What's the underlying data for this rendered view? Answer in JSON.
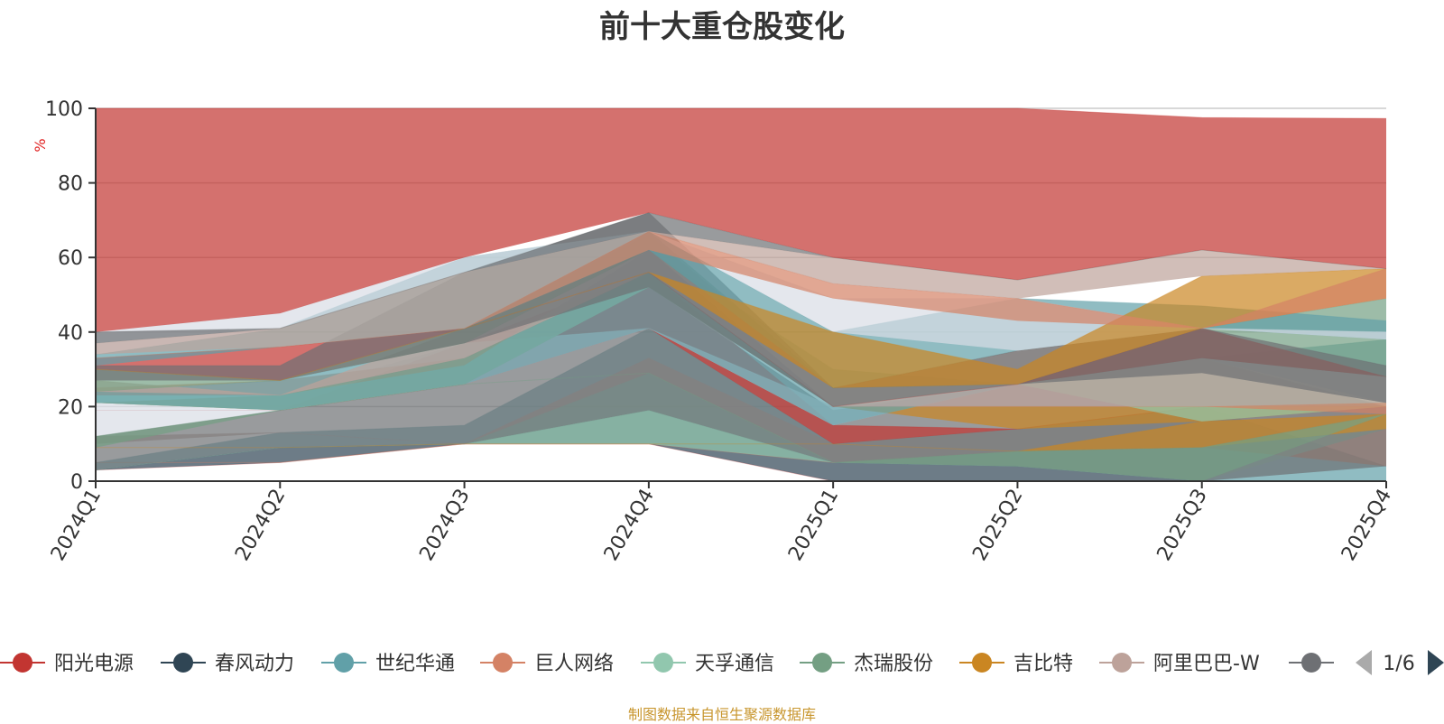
{
  "chart_data": {
    "type": "area",
    "title": "前十大重仓股变化",
    "ylabel": "%",
    "ylim": [
      0,
      100
    ],
    "yticks": [
      0,
      20,
      40,
      60,
      80,
      100
    ],
    "categories": [
      "2024Q1",
      "2024Q2",
      "2024Q3",
      "2024Q4",
      "2025Q1",
      "2025Q2",
      "2025Q3",
      "2025Q4"
    ],
    "series": [
      {
        "name": "阳光电源",
        "color": "#c23531"
      },
      {
        "name": "春风动力",
        "color": "#2f4554"
      },
      {
        "name": "世纪华通",
        "color": "#61a0a8"
      },
      {
        "name": "巨人网络",
        "color": "#d48265"
      },
      {
        "name": "天孚通信",
        "color": "#91c7ae"
      },
      {
        "name": "杰瑞股份",
        "color": "#749f83"
      },
      {
        "name": "吉比特",
        "color": "#ca8622"
      },
      {
        "name": "阿里巴巴-W",
        "color": "#bda29a"
      },
      {
        "name": "",
        "color": "#6e7074"
      }
    ],
    "layers": [
      {
        "color": "#c23531",
        "lower": [
          3,
          5,
          10,
          10,
          0,
          0,
          0,
          0
        ],
        "upper": [
          3,
          5,
          10,
          10,
          0,
          0,
          0,
          0
        ],
        "pointColor": "#c23531"
      },
      {
        "color": "#2f4554",
        "lower": [
          3,
          5,
          10,
          10,
          0,
          0,
          0,
          0
        ],
        "upper": [
          3,
          9,
          10,
          19,
          5,
          4,
          0,
          0
        ]
      },
      {
        "color": "#61a0a8",
        "lower": [
          3,
          9,
          10,
          19,
          5,
          4,
          0,
          0
        ],
        "upper": [
          5,
          13,
          15,
          41,
          10,
          14,
          20,
          4
        ]
      },
      {
        "color": "#d48265",
        "lower": [
          5,
          5,
          10,
          10,
          5,
          8,
          9,
          4
        ],
        "upper": [
          5,
          5,
          10,
          10,
          5,
          8,
          9,
          14
        ]
      },
      {
        "color": "#91c7ae",
        "lower": [
          3,
          9,
          10,
          10,
          5,
          4,
          0,
          14
        ],
        "upper": [
          3,
          9,
          10,
          29,
          5,
          4,
          0,
          18
        ]
      },
      {
        "color": "#bda29a",
        "lower": [
          10,
          13,
          10,
          29,
          5,
          8,
          9,
          18
        ],
        "upper": [
          12,
          13,
          10,
          33,
          10,
          14,
          20,
          20
        ]
      },
      {
        "color": "#6e7074",
        "lower": [
          3,
          9,
          10,
          19,
          5,
          4,
          0,
          4
        ],
        "upper": [
          12,
          19,
          26,
          52,
          19,
          26,
          33,
          20
        ]
      },
      {
        "color": "#ca8622",
        "lower": [
          9,
          9,
          10,
          10,
          10,
          8,
          9,
          14
        ],
        "upper": [
          9,
          9,
          10,
          10,
          10,
          8,
          16,
          18
        ]
      },
      {
        "color": "#c23531",
        "lower": [
          19,
          19,
          26,
          41,
          10,
          14,
          20,
          20
        ],
        "upper": [
          19,
          19,
          37,
          56,
          15,
          14,
          20,
          20
        ]
      },
      {
        "color": "#d8dde6",
        "lower": [
          12,
          19,
          26,
          41,
          15,
          26,
          33,
          20
        ],
        "upper": [
          21,
          23,
          37,
          41,
          20,
          26,
          33,
          20
        ]
      },
      {
        "color": "#749f83",
        "lower": [
          9,
          19,
          26,
          29,
          5,
          4,
          0,
          18
        ],
        "upper": [
          12,
          19,
          26,
          29,
          5,
          8,
          9,
          18
        ]
      },
      {
        "color": "#ca8622",
        "lower": [
          21,
          19,
          26,
          52,
          20,
          14,
          16,
          20
        ],
        "upper": [
          21,
          23,
          33,
          56,
          20,
          20,
          20,
          20
        ]
      },
      {
        "color": "#91c7ae",
        "lower": [
          21,
          19,
          26,
          52,
          20,
          26,
          16,
          20
        ],
        "upper": [
          24,
          23,
          31,
          62,
          30,
          26,
          33,
          21
        ]
      },
      {
        "color": "#d48265",
        "lower": [
          23,
          23,
          33,
          56,
          20,
          20,
          20,
          18
        ],
        "upper": [
          25,
          27,
          33,
          56,
          20,
          20,
          20,
          21
        ]
      },
      {
        "color": "#61a0a8",
        "lower": [
          21,
          19,
          26,
          41,
          15,
          26,
          33,
          21
        ],
        "upper": [
          24,
          27,
          37,
          62,
          20,
          26,
          33,
          38
        ]
      },
      {
        "color": "#bda29a",
        "lower": [
          24,
          23,
          33,
          56,
          20,
          20,
          20,
          21
        ],
        "upper": [
          27,
          23,
          41,
          66,
          25,
          35,
          41,
          28
        ]
      },
      {
        "color": "#749f83",
        "lower": [
          24,
          27,
          37,
          62,
          25,
          26,
          33,
          28
        ],
        "upper": [
          30,
          27,
          41,
          67,
          25,
          26,
          41,
          49
        ]
      },
      {
        "color": "#c23531",
        "lower": [
          30,
          27,
          41,
          56,
          20,
          26,
          33,
          28
        ],
        "upper": [
          33,
          36,
          41,
          56,
          20,
          26,
          41,
          28
        ]
      },
      {
        "color": "#6e7074",
        "lower": [
          27,
          27,
          37,
          52,
          20,
          26,
          29,
          21
        ],
        "upper": [
          31,
          31,
          56,
          72,
          25,
          35,
          41,
          31
        ]
      },
      {
        "color": "#61a0a8",
        "lower": [
          31,
          36,
          41,
          62,
          25,
          35,
          41,
          38
        ],
        "upper": [
          34,
          41,
          60,
          67,
          40,
          49,
          47,
          43
        ]
      },
      {
        "color": "#d8dde6",
        "lower": [
          34,
          41,
          56,
          67,
          40,
          35,
          41,
          38
        ],
        "upper": [
          40,
          45,
          60,
          67,
          49,
          49,
          41,
          40
        ]
      },
      {
        "color": "#ca8622",
        "lower": [
          30,
          27,
          41,
          56,
          25,
          26,
          41,
          49
        ],
        "upper": [
          30,
          27,
          41,
          56,
          40,
          30,
          55,
          57
        ]
      },
      {
        "color": "#d48265",
        "lower": [
          33,
          36,
          41,
          62,
          49,
          43,
          41,
          49
        ],
        "upper": [
          33,
          36,
          41,
          67,
          53,
          49,
          41,
          57
        ]
      },
      {
        "color": "#bda29a",
        "lower": [
          34,
          36,
          41,
          67,
          53,
          49,
          55,
          57
        ],
        "upper": [
          37,
          41,
          56,
          67,
          60,
          54,
          62,
          57
        ]
      },
      {
        "color": "#6e7074",
        "lower": [
          37,
          41,
          56,
          67,
          60,
          54,
          62,
          57
        ],
        "upper": [
          40,
          41,
          56,
          72,
          60,
          54,
          62,
          57
        ]
      },
      {
        "color": "#c23531",
        "lower": [
          40,
          45,
          60,
          72,
          60,
          54,
          62,
          57
        ],
        "upper": [
          100,
          100,
          100,
          100,
          100,
          100,
          97.5,
          97.3
        ]
      }
    ],
    "legend": {
      "position": "bottom",
      "page": "1/6"
    }
  },
  "source": "制图数据来自恒生聚源数据库"
}
